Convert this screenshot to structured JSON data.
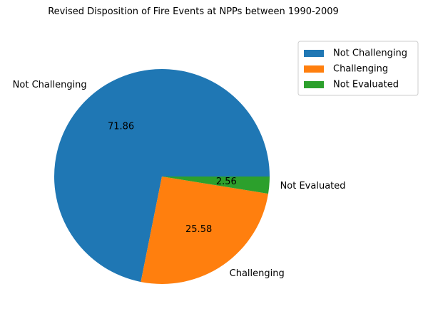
{
  "chart_data": {
    "type": "pie",
    "title": "Revised Disposition of Fire Events at NPPs between 1990-2009",
    "start_angle_deg": 0,
    "direction": "counterclockwise",
    "slices": [
      {
        "label": "Not Challenging",
        "value": 71.86,
        "value_label": "71.86",
        "color": "#1f77b4"
      },
      {
        "label": "Challenging",
        "value": 25.58,
        "value_label": "25.58",
        "color": "#ff7f0e"
      },
      {
        "label": "Not Evaluated",
        "value": 2.56,
        "value_label": "2.56",
        "color": "#2ca02c"
      }
    ],
    "legend": {
      "position": "upper-right outside",
      "entries": [
        "Not Challenging",
        "Challenging",
        "Not Evaluated"
      ]
    }
  }
}
